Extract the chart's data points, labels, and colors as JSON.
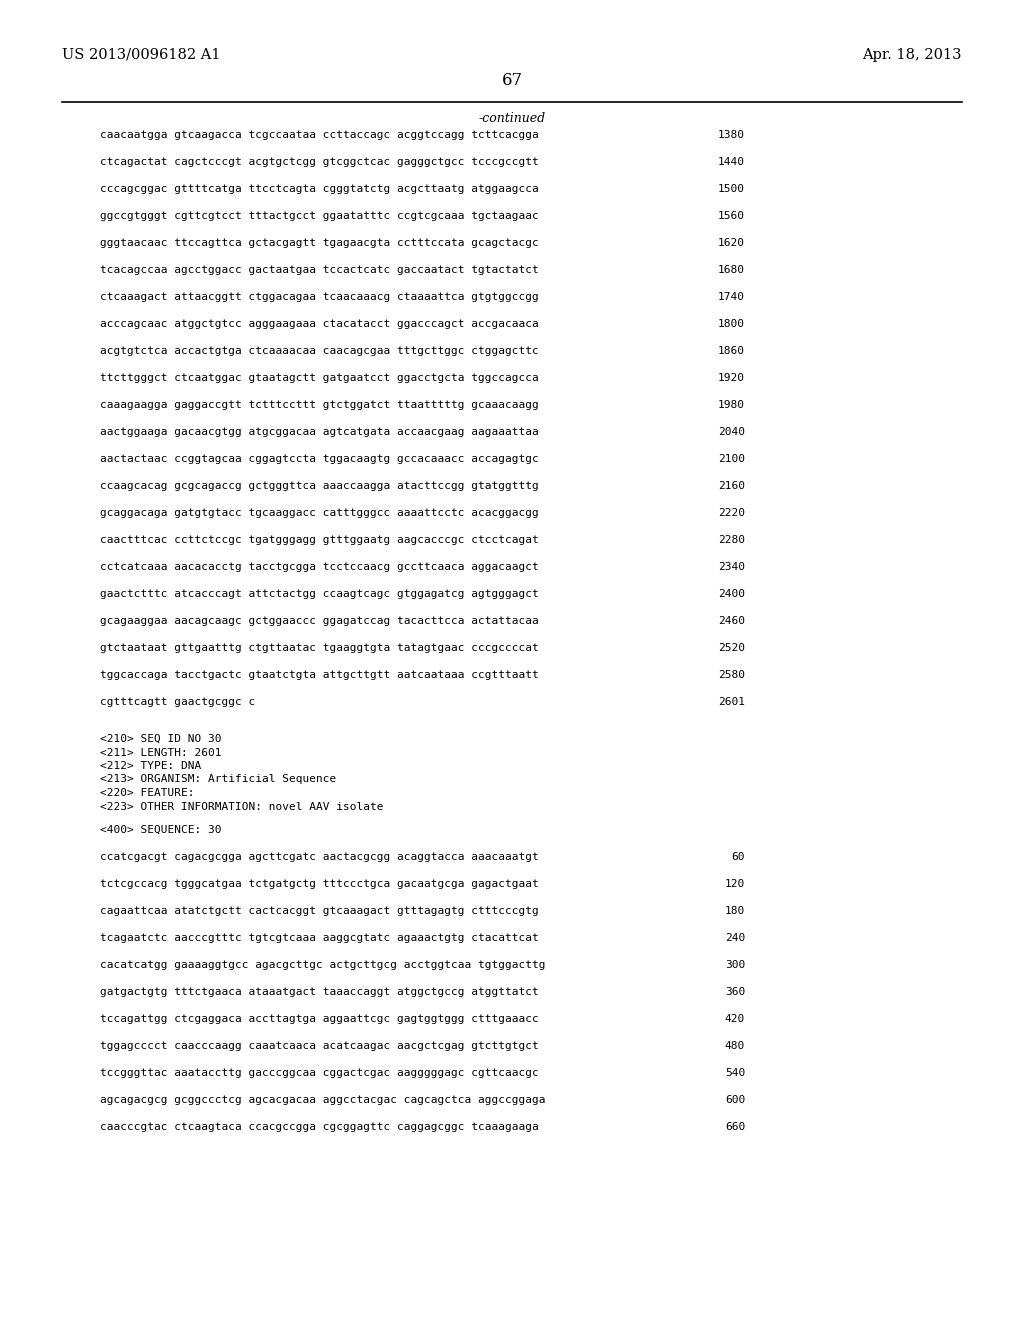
{
  "header_left": "US 2013/0096182 A1",
  "header_right": "Apr. 18, 2013",
  "page_number": "67",
  "continued_label": "-continued",
  "background_color": "#ffffff",
  "text_color": "#000000",
  "font_size": 8.0,
  "header_font_size": 10.5,
  "page_num_font_size": 12,
  "continued_font_size": 9,
  "sequence_lines": [
    [
      "caacaatgga gtcaagacca tcgccaataa ccttaccagc acggtccagg tcttcacgga",
      "1380"
    ],
    [
      "ctcagactat cagctcccgt acgtgctcgg gtcggctcac gagggctgcc tcccgccgtt",
      "1440"
    ],
    [
      "cccagcggac gttttcatga ttcctcagta cgggtatctg acgcttaatg atggaagcca",
      "1500"
    ],
    [
      "ggccgtgggt cgttcgtcct tttactgcct ggaatatttc ccgtcgcaaa tgctaagaac",
      "1560"
    ],
    [
      "gggtaacaac ttccagttca gctacgagtt tgagaacgta cctttccata gcagctacgc",
      "1620"
    ],
    [
      "tcacagccaa agcctggacc gactaatgaa tccactcatc gaccaatact tgtactatct",
      "1680"
    ],
    [
      "ctcaaagact attaacggtt ctggacagaa tcaacaaacg ctaaaattca gtgtggccgg",
      "1740"
    ],
    [
      "acccagcaac atggctgtcc agggaagaaa ctacatacct ggacccagct accgacaaca",
      "1800"
    ],
    [
      "acgtgtctca accactgtga ctcaaaacaa caacagcgaa tttgcttggc ctggagcttc",
      "1860"
    ],
    [
      "ttcttgggct ctcaatggac gtaatagctt gatgaatcct ggacctgcta tggccagcca",
      "1920"
    ],
    [
      "caaagaagga gaggaccgtt tctttccttt gtctggatct ttaatttttg gcaaacaagg",
      "1980"
    ],
    [
      "aactggaaga gacaacgtgg atgcggacaa agtcatgata accaacgaag aagaaattaa",
      "2040"
    ],
    [
      "aactactaac ccggtagcaa cggagtccta tggacaagtg gccacaaacc accagagtgc",
      "2100"
    ],
    [
      "ccaagcacag gcgcagaccg gctgggttca aaaccaagga atacttccgg gtatggtttg",
      "2160"
    ],
    [
      "gcaggacaga gatgtgtacc tgcaaggacc catttgggcc aaaattcctc acacggacgg",
      "2220"
    ],
    [
      "caactttcac ccttctccgc tgatgggagg gtttggaatg aagcacccgc ctcctcagat",
      "2280"
    ],
    [
      "cctcatcaaa aacacacctg tacctgcgga tcctccaacg gccttcaaca aggacaagct",
      "2340"
    ],
    [
      "gaactctttc atcacccagt attctactgg ccaagtcagc gtggagatcg agtgggagct",
      "2400"
    ],
    [
      "gcagaaggaa aacagcaagc gctggaaccc ggagatccag tacacttcca actattacaa",
      "2460"
    ],
    [
      "gtctaataat gttgaatttg ctgttaatac tgaaggtgta tatagtgaac cccgccccat",
      "2520"
    ],
    [
      "tggcaccaga tacctgactc gtaatctgta attgcttgtt aatcaataaa ccgtttaatt",
      "2580"
    ],
    [
      "cgtttcagtt gaactgcggc c",
      "2601"
    ]
  ],
  "metadata_lines": [
    "<210> SEQ ID NO 30",
    "<211> LENGTH: 2601",
    "<212> TYPE: DNA",
    "<213> ORGANISM: Artificial Sequence",
    "<220> FEATURE:",
    "<223> OTHER INFORMATION: novel AAV isolate"
  ],
  "sequence_label": "<400> SEQUENCE: 30",
  "sequence2_lines": [
    [
      "ccatcgacgt cagacgcgga agcttcgatc aactacgcgg acaggtacca aaacaaatgt",
      "60"
    ],
    [
      "tctcgccacg tgggcatgaa tctgatgctg tttccctgca gacaatgcga gagactgaat",
      "120"
    ],
    [
      "cagaattcaa atatctgctt cactcacggt gtcaaagact gtttagagtg ctttcccgtg",
      "180"
    ],
    [
      "tcagaatctc aacccgtttc tgtcgtcaaa aaggcgtatc agaaactgtg ctacattcat",
      "240"
    ],
    [
      "cacatcatgg gaaaaggtgcc agacgcttgc actgcttgcg acctggtcaa tgtggacttg",
      "300"
    ],
    [
      "gatgactgtg tttctgaaca ataaatgact taaaccaggt atggctgccg atggttatct",
      "360"
    ],
    [
      "tccagattgg ctcgaggaca accttagtga aggaattcgc gagtggtggg ctttgaaacc",
      "420"
    ],
    [
      "tggagcccct caacccaagg caaatcaaca acatcaagac aacgctcgag gtcttgtgct",
      "480"
    ],
    [
      "tccgggttac aaataccttg gacccggcaa cggactcgac aagggggagc cgttcaacgc",
      "540"
    ],
    [
      "agcagacgcg gcggccctcg agcacgacaa aggcctacgac cagcagctca aggccggaga",
      "600"
    ],
    [
      "caacccgtac ctcaagtaca ccacgccgga cgcggagttc caggagcggc tcaaagaaga",
      "660"
    ]
  ]
}
